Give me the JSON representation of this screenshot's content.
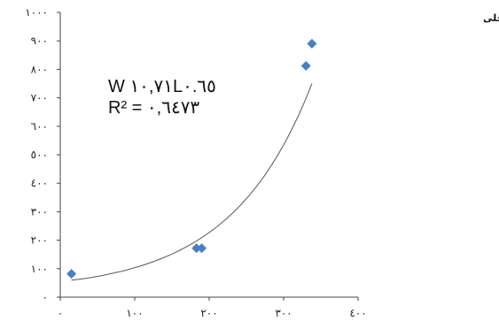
{
  "chart_data": {
    "type": "scatter",
    "title": "",
    "xlabel": "",
    "ylabel": "",
    "xlim": [
      0,
      400
    ],
    "ylim": [
      0,
      1000
    ],
    "x_ticks": [
      0,
      100,
      200,
      300,
      400
    ],
    "y_ticks": [
      0,
      100,
      200,
      300,
      400,
      500,
      600,
      700,
      800,
      900,
      1000
    ],
    "x_tick_labels": [
      "٠",
      "١٠٠",
      "٢٠٠",
      "٣٠٠",
      "٤٠٠"
    ],
    "y_tick_labels": [
      "٠",
      "١٠٠",
      "٢٠٠",
      "٣٠٠",
      "٤٠٠",
      "٥٠٠",
      "٦٠٠",
      "٧٠٠",
      "٨٠٠",
      "٩٠٠",
      "١٠٠٠"
    ],
    "grid": false,
    "legend_position": "top-right",
    "series": [
      {
        "name": "کپور علفخواراداخلی",
        "marker": "diamond",
        "color": "#4a7fc1",
        "points": [
          {
            "x": 15,
            "y": 82
          },
          {
            "x": 183,
            "y": 172
          },
          {
            "x": 190,
            "y": 172
          },
          {
            "x": 330,
            "y": 812
          },
          {
            "x": 338,
            "y": 890
          }
        ]
      }
    ],
    "trendline": {
      "type": "power",
      "coefficient": 10.71,
      "exponent": 0.65,
      "x_range": [
        15,
        338
      ],
      "color": "#555555"
    },
    "annotations": {
      "equation_line1": "W ١٠,٧١L٠.٦٥",
      "equation_line2": "R² = ٠,٦٤٧٣"
    }
  }
}
